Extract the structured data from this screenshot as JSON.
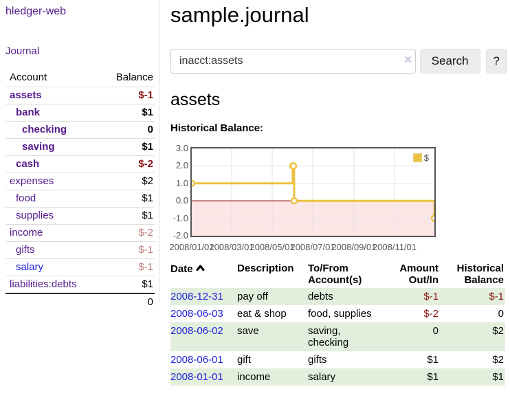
{
  "app": {
    "title": "hledger-web"
  },
  "colors": {
    "link_purple": "#551a8b",
    "link_blue": "#2222dd",
    "negative_strong": "#8b1414",
    "negative_dim": "#bd7c7c",
    "stripe_green": "#e2efdc",
    "series_gold": "#edc240"
  },
  "icons": {
    "date_sort": "chevron-up-icon",
    "search_clear": "x-clear-icon"
  },
  "sidebar": {
    "journal_link": "Journal",
    "table": {
      "account_header": "Account",
      "balance_header": "Balance",
      "rows": [
        {
          "name": "assets",
          "indent": 0,
          "bold": true,
          "balance": "$-1",
          "neg": "strong"
        },
        {
          "name": "bank",
          "indent": 1,
          "bold": true,
          "balance": "$1",
          "neg": "none"
        },
        {
          "name": "checking",
          "indent": 2,
          "bold": true,
          "balance": "0",
          "neg": "none"
        },
        {
          "name": "saving",
          "indent": 2,
          "bold": true,
          "balance": "$1",
          "neg": "none"
        },
        {
          "name": "cash",
          "indent": 1,
          "bold": true,
          "balance": "$-2",
          "neg": "strong"
        },
        {
          "name": "expenses",
          "indent": 0,
          "bold": false,
          "balance": "$2",
          "neg": "none"
        },
        {
          "name": "food",
          "indent": 1,
          "bold": false,
          "balance": "$1",
          "neg": "none"
        },
        {
          "name": "supplies",
          "indent": 1,
          "bold": false,
          "balance": "$1",
          "neg": "none"
        },
        {
          "name": "income",
          "indent": 0,
          "bold": false,
          "balance": "$-2",
          "neg": "dim"
        },
        {
          "name": "gifts",
          "indent": 1,
          "bold": false,
          "balance": "$-1",
          "neg": "dim"
        },
        {
          "name": "salary",
          "indent": 1,
          "bold": false,
          "balance": "$-1",
          "neg": "dim",
          "unvisited": true
        },
        {
          "name": "liabilities:debts",
          "indent": 0,
          "bold": false,
          "balance": "$1",
          "neg": "none"
        }
      ],
      "total": "0"
    }
  },
  "header": {
    "title": "sample.journal"
  },
  "search": {
    "value": "inacct:assets",
    "clear_glyph": "×",
    "button_label": "Search",
    "help_label": "?"
  },
  "account_page": {
    "heading": "assets",
    "chart_label": "Historical Balance:"
  },
  "chart_data": {
    "type": "line",
    "steps": true,
    "title": "Historical Balance:",
    "series": [
      {
        "name": "$",
        "color": "#edc240",
        "points": [
          [
            "2008-01-01",
            1
          ],
          [
            "2008-06-01",
            2
          ],
          [
            "2008-06-02",
            2
          ],
          [
            "2008-06-03",
            0
          ],
          [
            "2008-12-31",
            -1
          ]
        ]
      }
    ],
    "x_range": [
      "2008-01-01",
      "2008-12-31"
    ],
    "xticks": [
      {
        "label": "2008/01/01",
        "date": "2008-01-01"
      },
      {
        "label": "2008/03/01",
        "date": "2008-03-01"
      },
      {
        "label": "2008/05/01",
        "date": "2008-05-01"
      },
      {
        "label": "2008/07/01",
        "date": "2008-07-01"
      },
      {
        "label": "2008/09/01",
        "date": "2008-09-01"
      },
      {
        "label": "2008/11/01",
        "date": "2008-11-01"
      }
    ],
    "yticks": [
      "3.0",
      "2.0",
      "1.0",
      "0.0",
      "-1.0",
      "-2.0"
    ],
    "ylim": [
      -2,
      3
    ],
    "grid": true,
    "legend": {
      "label": "$",
      "position": "top-right"
    },
    "negative_region_fill": "#fce6e6",
    "zero_line_color": "#8b0000",
    "gridline_color": "#e3e3e3",
    "border_color": "#545454"
  },
  "register": {
    "headers": {
      "date": "Date",
      "description": "Description",
      "account": "To/From Account(s)",
      "amount": "Amount Out/In",
      "balance": "Historical Balance"
    },
    "rows": [
      {
        "date": "2008-12-31",
        "description": "pay off",
        "accounts": "debts",
        "amount": "$-1",
        "amount_neg": true,
        "balance": "$-1",
        "balance_neg": true
      },
      {
        "date": "2008-06-03",
        "description": "eat & shop",
        "accounts": "food, supplies",
        "amount": "$-2",
        "amount_neg": true,
        "balance": "0",
        "balance_neg": false
      },
      {
        "date": "2008-06-02",
        "description": "save",
        "accounts": "saving, checking",
        "amount": "0",
        "amount_neg": false,
        "balance": "$2",
        "balance_neg": false
      },
      {
        "date": "2008-06-01",
        "description": "gift",
        "accounts": "gifts",
        "amount": "$1",
        "amount_neg": false,
        "balance": "$2",
        "balance_neg": false
      },
      {
        "date": "2008-01-01",
        "description": "income",
        "accounts": "salary",
        "amount": "$1",
        "amount_neg": false,
        "balance": "$1",
        "balance_neg": false
      }
    ]
  }
}
